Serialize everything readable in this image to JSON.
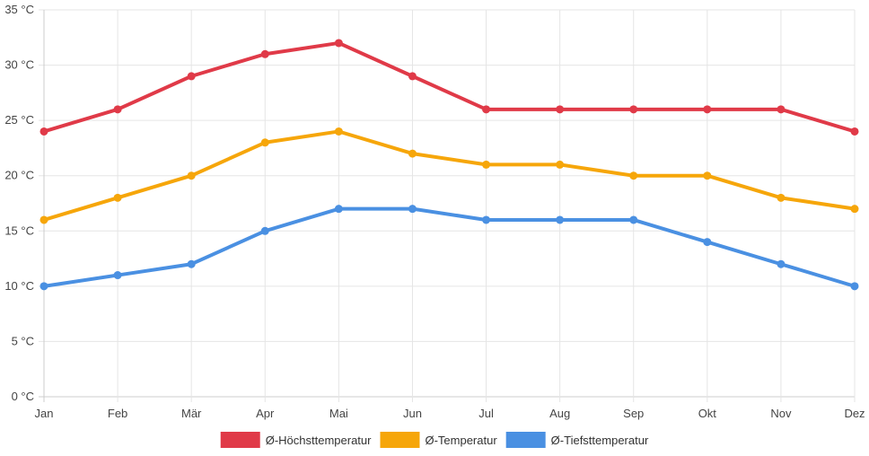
{
  "chart_data": {
    "type": "line",
    "title": "",
    "xlabel": "",
    "ylabel": "",
    "categories": [
      "Jan",
      "Feb",
      "Mär",
      "Apr",
      "Mai",
      "Jun",
      "Jul",
      "Aug",
      "Sep",
      "Okt",
      "Nov",
      "Dez"
    ],
    "ylim": [
      0,
      35
    ],
    "y_ticks": [
      0,
      5,
      10,
      15,
      20,
      25,
      30,
      35
    ],
    "y_unit": " °C",
    "grid": true,
    "legend_position": "bottom",
    "series": [
      {
        "name": "Ø-Höchsttemperatur",
        "color": "#e03a48",
        "values": [
          24,
          26,
          29,
          31,
          32,
          29,
          26,
          26,
          26,
          26,
          26,
          24
        ]
      },
      {
        "name": "Ø-Temperatur",
        "color": "#f6a60a",
        "values": [
          16,
          18,
          20,
          23,
          24,
          22,
          21,
          21,
          20,
          20,
          18,
          17
        ]
      },
      {
        "name": "Ø-Tiefsttemperatur",
        "color": "#4a90e2",
        "values": [
          10,
          11,
          12,
          15,
          17,
          17,
          16,
          16,
          16,
          14,
          12,
          10
        ]
      }
    ]
  }
}
